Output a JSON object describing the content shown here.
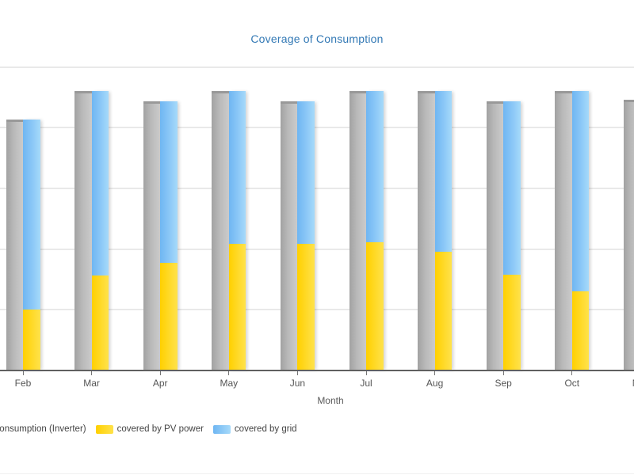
{
  "chart_data": {
    "type": "bar",
    "title": "Coverage of Consumption",
    "title_color": "#3379b5",
    "xlabel": "Month",
    "ylabel": "",
    "categories": [
      "Feb",
      "Mar",
      "Apr",
      "May",
      "Jun",
      "Jul",
      "Aug",
      "Sep",
      "Oct",
      "Nov"
    ],
    "series": [
      {
        "key": "consumption",
        "name": "Consumption (Inverter)",
        "color": "#b9b9b9",
        "stacked": false,
        "values": [
          4.14,
          4.6,
          4.44,
          4.6,
          4.44,
          4.6,
          4.61,
          4.44,
          4.61,
          4.46
        ]
      },
      {
        "key": "pv",
        "name": "covered by PV power",
        "color": "#ffd400",
        "stacked": true,
        "values": [
          1.01,
          1.57,
          1.78,
          2.09,
          2.09,
          2.11,
          1.96,
          1.58,
          1.31,
          null
        ]
      },
      {
        "key": "grid",
        "name": "covered by grid",
        "color": "#8cc8f7",
        "stacked": true,
        "values": [
          3.13,
          3.03,
          2.66,
          2.51,
          2.35,
          2.49,
          2.65,
          2.86,
          3.3,
          null
        ]
      }
    ],
    "y_axis": {
      "labels_visible": false,
      "gridline_count": 5,
      "units": "unlabeled gridline intervals (y-axis cropped off-screen left)",
      "ylim": [
        0,
        6.1
      ]
    },
    "grid": true,
    "legend_position": "bottom-left",
    "crop_note": "Chart is cropped: y-axis off-screen left, Nov bar and legend first item partially clipped"
  }
}
